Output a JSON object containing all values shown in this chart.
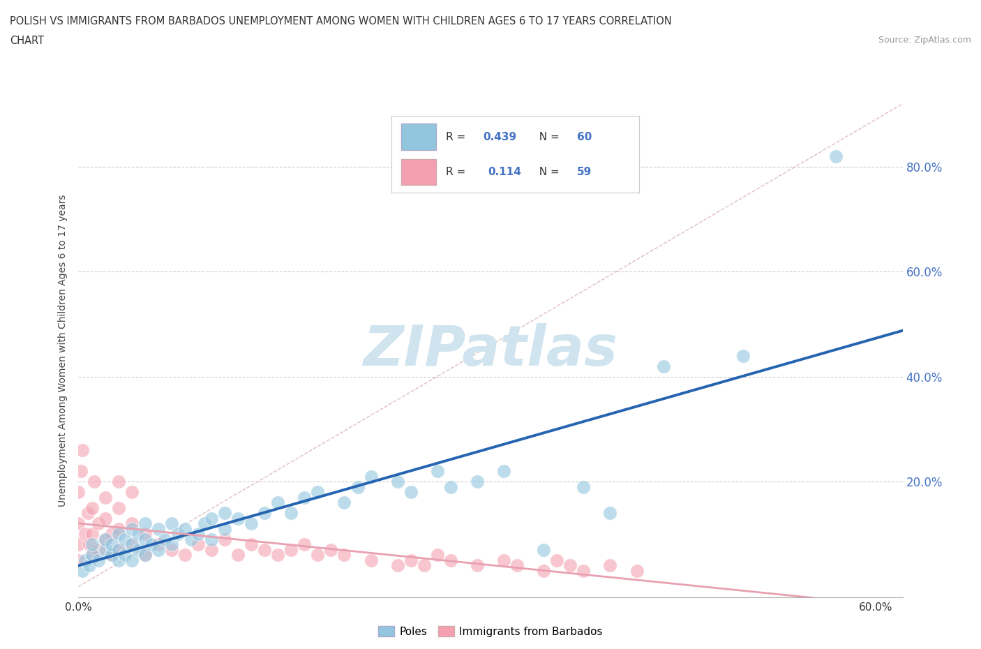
{
  "title_line1": "POLISH VS IMMIGRANTS FROM BARBADOS UNEMPLOYMENT AMONG WOMEN WITH CHILDREN AGES 6 TO 17 YEARS CORRELATION",
  "title_line2": "CHART",
  "source": "Source: ZipAtlas.com",
  "ylabel": "Unemployment Among Women with Children Ages 6 to 17 years",
  "xlim": [
    0.0,
    0.62
  ],
  "ylim": [
    -0.02,
    0.92
  ],
  "xtick_positions": [
    0.0,
    0.1,
    0.2,
    0.3,
    0.4,
    0.5,
    0.6
  ],
  "xticklabels": [
    "0.0%",
    "",
    "",
    "",
    "",
    "",
    "60.0%"
  ],
  "ytick_positions": [
    0.2,
    0.4,
    0.6,
    0.8
  ],
  "ytick_labels": [
    "20.0%",
    "40.0%",
    "60.0%",
    "80.0%"
  ],
  "poles_color": "#92c5de",
  "barbados_color": "#f4a0b0",
  "poles_R": 0.439,
  "poles_N": 60,
  "barbados_R": 0.114,
  "barbados_N": 59,
  "poles_scatter_x": [
    0.003,
    0.005,
    0.008,
    0.01,
    0.01,
    0.015,
    0.02,
    0.02,
    0.025,
    0.025,
    0.03,
    0.03,
    0.03,
    0.035,
    0.035,
    0.04,
    0.04,
    0.04,
    0.045,
    0.045,
    0.05,
    0.05,
    0.05,
    0.055,
    0.06,
    0.06,
    0.065,
    0.07,
    0.07,
    0.075,
    0.08,
    0.085,
    0.09,
    0.095,
    0.1,
    0.1,
    0.11,
    0.11,
    0.12,
    0.13,
    0.14,
    0.15,
    0.16,
    0.17,
    0.18,
    0.2,
    0.21,
    0.22,
    0.24,
    0.25,
    0.27,
    0.28,
    0.3,
    0.32,
    0.35,
    0.38,
    0.4,
    0.44,
    0.5,
    0.57
  ],
  "poles_scatter_y": [
    0.03,
    0.05,
    0.04,
    0.06,
    0.08,
    0.05,
    0.07,
    0.09,
    0.06,
    0.08,
    0.05,
    0.07,
    0.1,
    0.06,
    0.09,
    0.05,
    0.08,
    0.11,
    0.07,
    0.1,
    0.06,
    0.09,
    0.12,
    0.08,
    0.07,
    0.11,
    0.09,
    0.08,
    0.12,
    0.1,
    0.11,
    0.09,
    0.1,
    0.12,
    0.09,
    0.13,
    0.11,
    0.14,
    0.13,
    0.12,
    0.14,
    0.16,
    0.14,
    0.17,
    0.18,
    0.16,
    0.19,
    0.21,
    0.2,
    0.18,
    0.22,
    0.19,
    0.2,
    0.22,
    0.07,
    0.19,
    0.14,
    0.42,
    0.44,
    0.82
  ],
  "barbados_scatter_x": [
    0.0,
    0.0,
    0.0,
    0.0,
    0.002,
    0.003,
    0.005,
    0.007,
    0.008,
    0.01,
    0.01,
    0.01,
    0.012,
    0.015,
    0.015,
    0.02,
    0.02,
    0.02,
    0.025,
    0.025,
    0.03,
    0.03,
    0.03,
    0.03,
    0.04,
    0.04,
    0.04,
    0.05,
    0.05,
    0.06,
    0.07,
    0.08,
    0.09,
    0.1,
    0.11,
    0.12,
    0.13,
    0.14,
    0.15,
    0.16,
    0.17,
    0.18,
    0.19,
    0.2,
    0.22,
    0.24,
    0.25,
    0.26,
    0.27,
    0.28,
    0.3,
    0.32,
    0.33,
    0.35,
    0.36,
    0.37,
    0.38,
    0.4,
    0.42
  ],
  "barbados_scatter_y": [
    0.05,
    0.08,
    0.12,
    0.18,
    0.22,
    0.26,
    0.1,
    0.14,
    0.08,
    0.06,
    0.1,
    0.15,
    0.2,
    0.07,
    0.12,
    0.09,
    0.13,
    0.17,
    0.06,
    0.1,
    0.07,
    0.11,
    0.15,
    0.2,
    0.08,
    0.12,
    0.18,
    0.06,
    0.1,
    0.08,
    0.07,
    0.06,
    0.08,
    0.07,
    0.09,
    0.06,
    0.08,
    0.07,
    0.06,
    0.07,
    0.08,
    0.06,
    0.07,
    0.06,
    0.05,
    0.04,
    0.05,
    0.04,
    0.06,
    0.05,
    0.04,
    0.05,
    0.04,
    0.03,
    0.05,
    0.04,
    0.03,
    0.04,
    0.03
  ],
  "background_color": "#ffffff",
  "grid_color": "#cccccc",
  "trend_line_color_poles": "#2464b0",
  "trend_line_color_barbados": "#e8a0b0",
  "diagonal_dash_color": "#d0a0a8",
  "watermark_text": "ZIPatlas",
  "watermark_color": "#d0e4f0"
}
